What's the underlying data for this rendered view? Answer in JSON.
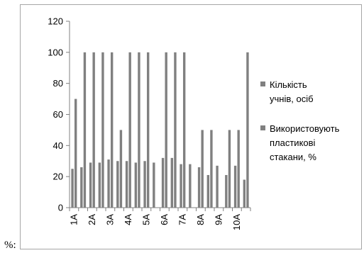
{
  "prefix_text": "%:",
  "colors": {
    "series": "#808080",
    "axis": "#808080",
    "frame": "#a6a6a6"
  },
  "chart_data": {
    "type": "bar",
    "categories": [
      "1А",
      "",
      "2А",
      "",
      "3А",
      "",
      "4А",
      "",
      "5А",
      "",
      "6А",
      "",
      "7А",
      "",
      "8А",
      "",
      "9А",
      "",
      "10А",
      ""
    ],
    "series": [
      {
        "name": "Кількість учнів, осіб",
        "legend_lines": [
          "Кількість",
          "учнів, осіб"
        ],
        "values": [
          25,
          26,
          29,
          29,
          31,
          30,
          30,
          29,
          30,
          29,
          32,
          32,
          28,
          28,
          26,
          21,
          27,
          21,
          27,
          18
        ]
      },
      {
        "name": "Використовують пластикові стакани, %",
        "legend_lines": [
          "Використовують",
          "пластикові",
          "стакани, %"
        ],
        "values": [
          70,
          100,
          100,
          100,
          100,
          50,
          100,
          100,
          100,
          0,
          100,
          100,
          100,
          0,
          50,
          50,
          0,
          50,
          50,
          100
        ]
      }
    ],
    "yticks": [
      "0",
      "20",
      "40",
      "60",
      "80",
      "100",
      "120"
    ],
    "ylim": [
      0,
      120
    ],
    "grid": false,
    "legend_position": "right"
  }
}
